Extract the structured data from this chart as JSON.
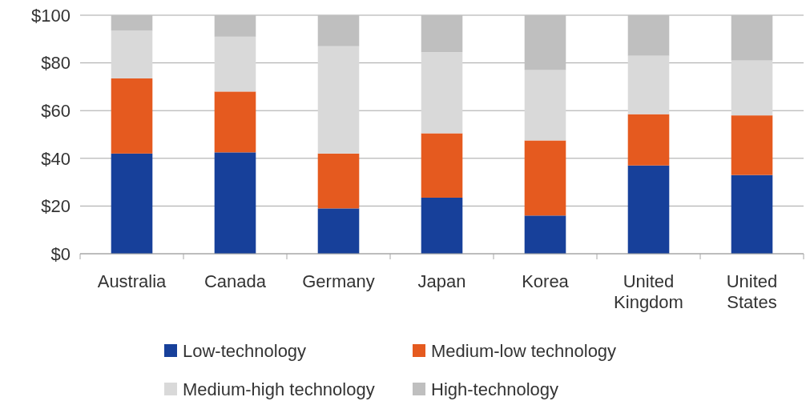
{
  "chart_data": {
    "type": "bar",
    "stacked": true,
    "categories": [
      "Australia",
      "Canada",
      "Germany",
      "Japan",
      "Korea",
      "United Kingdom",
      "United States"
    ],
    "series": [
      {
        "name": "Low-technology",
        "color": "#17409a",
        "values": [
          42,
          42.5,
          19,
          23.5,
          16,
          37,
          33
        ]
      },
      {
        "name": "Medium-low technology",
        "color": "#e55a1f",
        "values": [
          31.5,
          25.5,
          23,
          27,
          31.5,
          21.5,
          25
        ]
      },
      {
        "name": "Medium-high technology",
        "color": "#d9d9d9",
        "values": [
          20,
          23,
          45,
          34,
          29.5,
          24.5,
          23
        ]
      },
      {
        "name": "High-technology",
        "color": "#bfbfbf",
        "values": [
          6.5,
          9,
          13,
          15.5,
          23,
          17,
          19
        ]
      }
    ],
    "ylim": [
      0,
      100
    ],
    "yticks": [
      {
        "value": 0,
        "label": "$0"
      },
      {
        "value": 20,
        "label": "$20"
      },
      {
        "value": 40,
        "label": "$40"
      },
      {
        "value": 60,
        "label": "$60"
      },
      {
        "value": 80,
        "label": "$80"
      },
      {
        "value": 100,
        "label": "$100"
      }
    ],
    "grid": "y",
    "legend": "bottom"
  }
}
